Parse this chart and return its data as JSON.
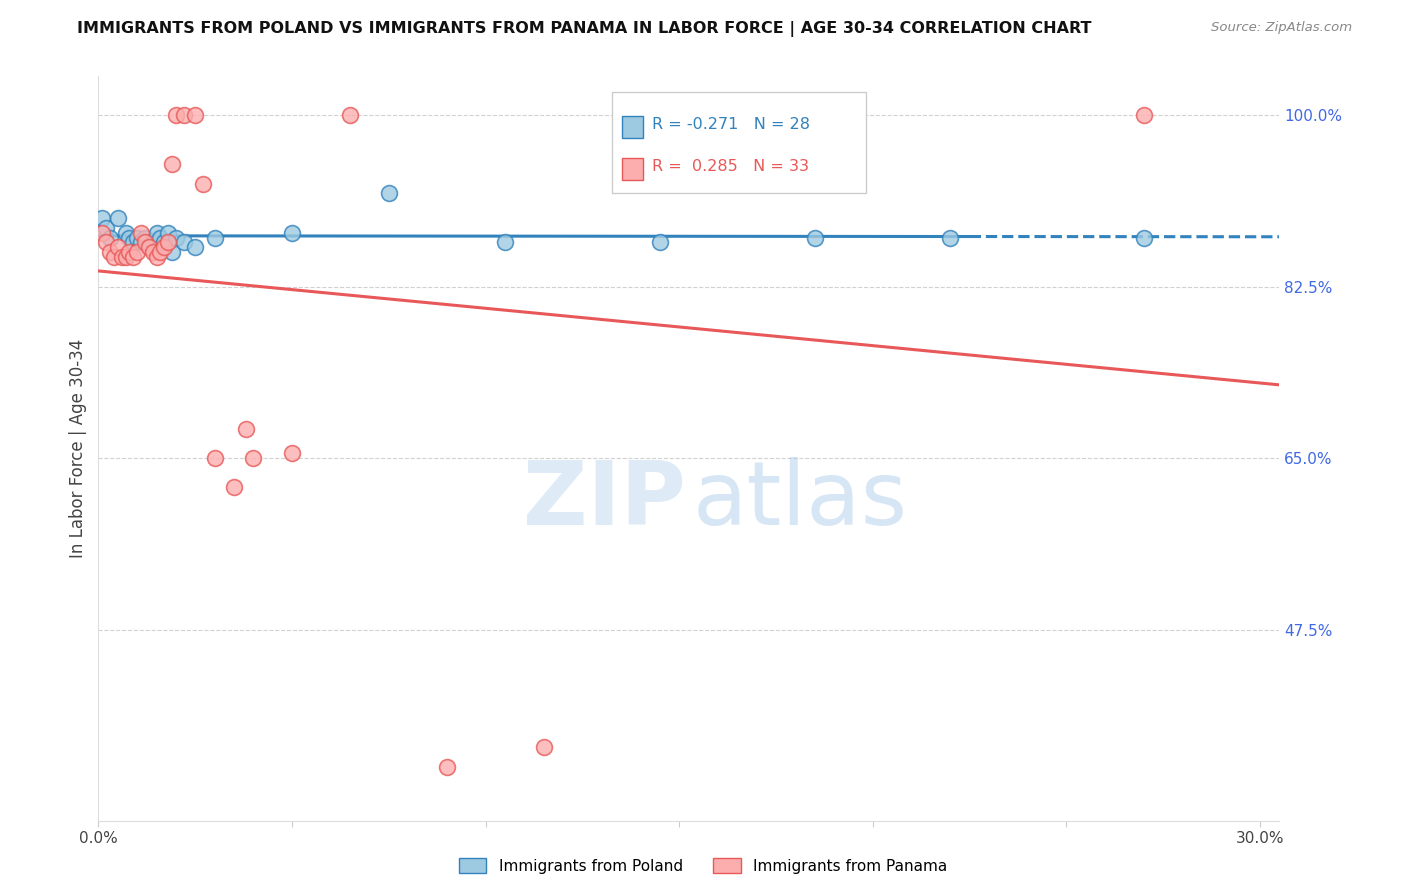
{
  "title": "IMMIGRANTS FROM POLAND VS IMMIGRANTS FROM PANAMA IN LABOR FORCE | AGE 30-34 CORRELATION CHART",
  "source": "Source: ZipAtlas.com",
  "ylabel": "In Labor Force | Age 30-34",
  "legend_poland": "Immigrants from Poland",
  "legend_panama": "Immigrants from Panama",
  "r_poland": -0.271,
  "n_poland": 28,
  "r_panama": 0.285,
  "n_panama": 33,
  "color_poland": "#9ecae1",
  "color_panama": "#fcaeae",
  "color_trendline_poland": "#3182bd",
  "color_trendline_panama": "#e85858",
  "color_right_axis": "#4169E1",
  "xlim": [
    0.0,
    0.305
  ],
  "ylim": [
    0.28,
    1.04
  ],
  "yticks_right": [
    0.475,
    0.65,
    0.825,
    1.0
  ],
  "ytick_labels_right": [
    "47.5%",
    "65.0%",
    "82.5%",
    "100.0%"
  ],
  "xtick_positions": [
    0.0,
    0.05,
    0.1,
    0.15,
    0.2,
    0.25,
    0.3
  ],
  "background_color": "#ffffff",
  "grid_color": "#cccccc",
  "watermark_zip": "ZIP",
  "watermark_atlas": "atlas",
  "poland_x": [
    0.001,
    0.002,
    0.003,
    0.005,
    0.007,
    0.008,
    0.009,
    0.01,
    0.011,
    0.012,
    0.013,
    0.014,
    0.015,
    0.016,
    0.017,
    0.018,
    0.019,
    0.02,
    0.022,
    0.025,
    0.03,
    0.05,
    0.075,
    0.105,
    0.145,
    0.185,
    0.22,
    0.27
  ],
  "poland_y": [
    0.895,
    0.885,
    0.875,
    0.895,
    0.88,
    0.875,
    0.87,
    0.875,
    0.87,
    0.875,
    0.865,
    0.87,
    0.88,
    0.875,
    0.87,
    0.88,
    0.86,
    0.875,
    0.87,
    0.865,
    0.875,
    0.88,
    0.92,
    0.87,
    0.87,
    0.875,
    0.875,
    0.875
  ],
  "panama_x": [
    0.001,
    0.002,
    0.003,
    0.004,
    0.005,
    0.006,
    0.007,
    0.008,
    0.009,
    0.01,
    0.011,
    0.012,
    0.013,
    0.014,
    0.015,
    0.016,
    0.017,
    0.018,
    0.019,
    0.02,
    0.022,
    0.025,
    0.027,
    0.03,
    0.035,
    0.038,
    0.04,
    0.05,
    0.065,
    0.09,
    0.115,
    0.15,
    0.27
  ],
  "panama_y": [
    0.88,
    0.87,
    0.86,
    0.855,
    0.865,
    0.855,
    0.855,
    0.86,
    0.855,
    0.86,
    0.88,
    0.87,
    0.865,
    0.86,
    0.855,
    0.86,
    0.865,
    0.87,
    0.95,
    1.0,
    1.0,
    1.0,
    0.93,
    0.65,
    0.62,
    0.68,
    0.65,
    0.655,
    1.0,
    0.335,
    0.355,
    0.94,
    1.0
  ]
}
